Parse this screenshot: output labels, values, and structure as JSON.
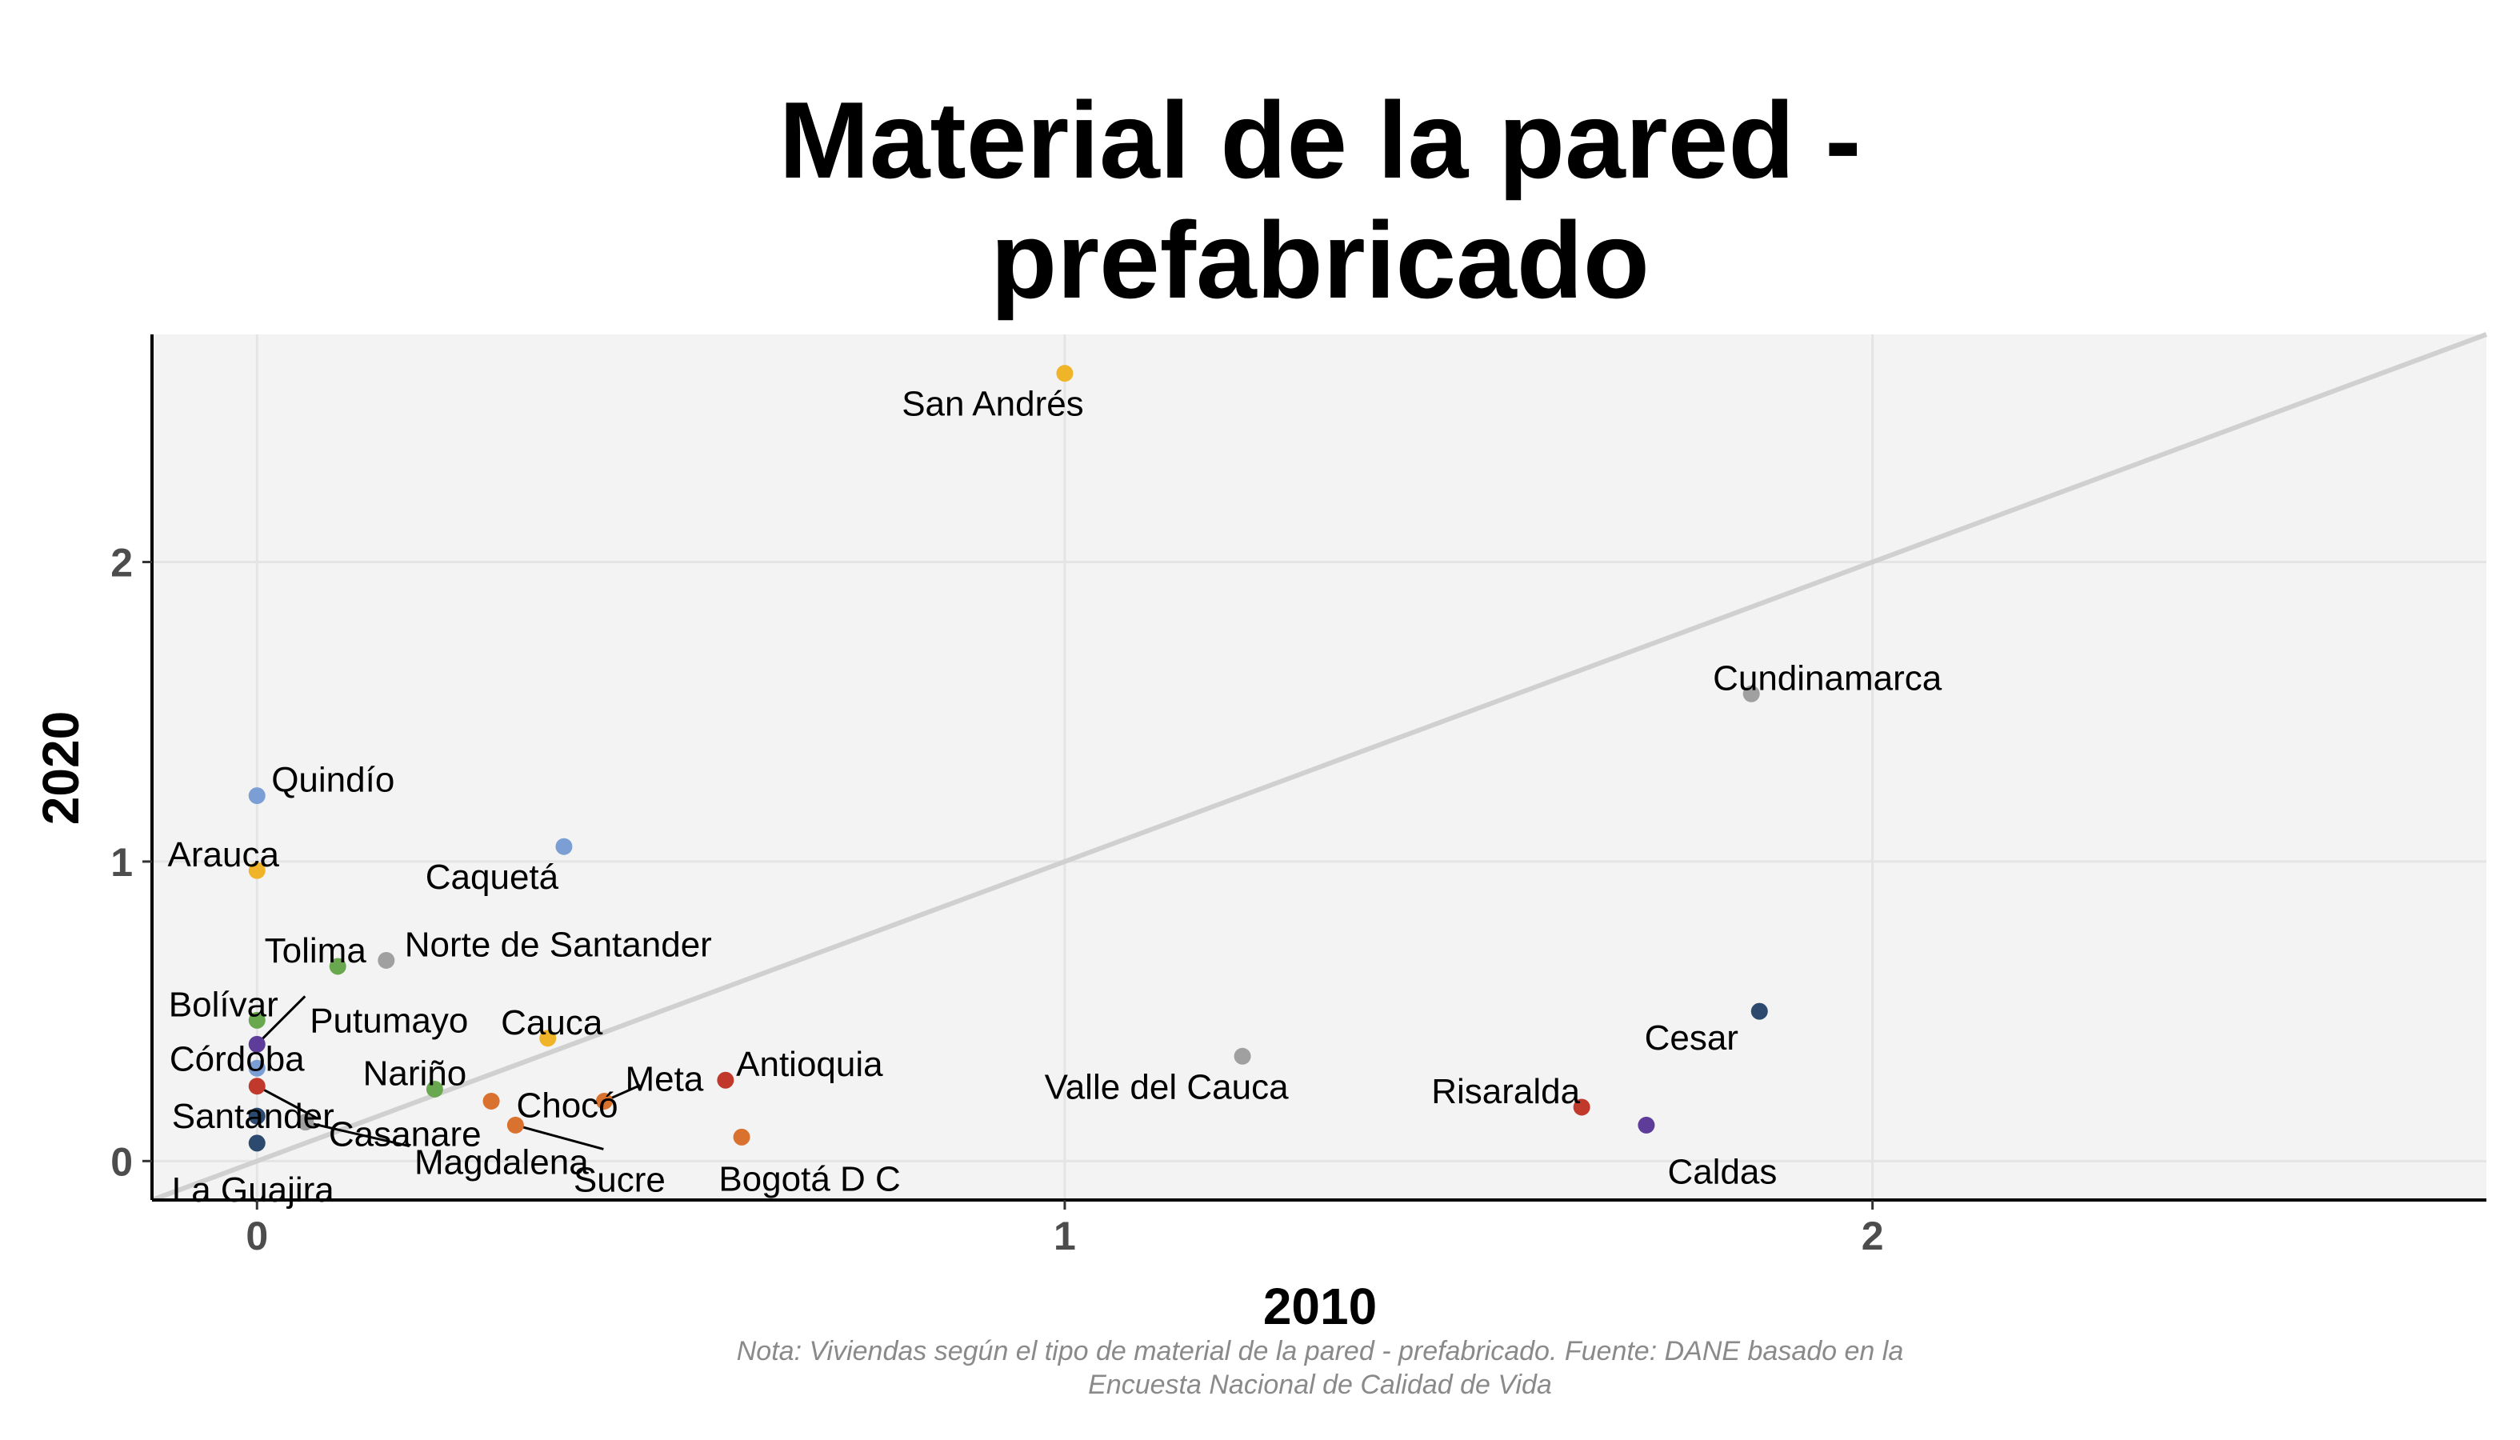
{
  "chart_data": {
    "type": "scatter",
    "title": [
      "Material de la pared -",
      "prefabricado"
    ],
    "xlabel": "2010",
    "ylabel": "2020",
    "caption": [
      "Nota: Viviendas según el tipo de material de la pared - prefabricado. Fuente: DANE basado en la",
      "Encuesta Nacional de Calidad de Vida"
    ],
    "xlim": [
      -0.13,
      2.76
    ],
    "ylim": [
      -0.13,
      2.76
    ],
    "x_ticks": [
      0,
      1,
      2
    ],
    "y_ticks": [
      0,
      1,
      2
    ],
    "grid": true,
    "reference_line": "y = x",
    "colors": {
      "panel": "#f3f3f3",
      "grid": "#e4e4e4",
      "reference_line": "#d0d0d0",
      "yellow": "#f0b429",
      "blue": "#7b9fd4",
      "green": "#6aa84f",
      "gray": "#a0a0a0",
      "orange": "#d9722e",
      "red": "#c0392b",
      "purple": "#5e3c99",
      "navy": "#2c4a6e"
    },
    "points": [
      {
        "name": "San Andrés",
        "x": 1.0,
        "y": 2.63,
        "color": "yellow"
      },
      {
        "name": "Cundinamarca",
        "x": 1.85,
        "y": 1.56,
        "color": "gray"
      },
      {
        "name": "Quindío",
        "x": 0.0,
        "y": 1.22,
        "color": "blue"
      },
      {
        "name": "Caquetá",
        "x": 0.38,
        "y": 1.05,
        "color": "blue"
      },
      {
        "name": "Arauca",
        "x": 0.0,
        "y": 0.97,
        "color": "yellow"
      },
      {
        "name": "Norte de Santander",
        "x": 0.16,
        "y": 0.67,
        "color": "gray"
      },
      {
        "name": "Tolima",
        "x": 0.1,
        "y": 0.65,
        "color": "green"
      },
      {
        "name": "Cesar",
        "x": 1.86,
        "y": 0.5,
        "color": "navy"
      },
      {
        "name": "Bolívar",
        "x": 0.0,
        "y": 0.47,
        "color": "green"
      },
      {
        "name": "Cauca",
        "x": 0.36,
        "y": 0.41,
        "color": "yellow"
      },
      {
        "name": "Putumayo",
        "x": 0.0,
        "y": 0.39,
        "color": "purple"
      },
      {
        "name": "Valle del Cauca",
        "x": 1.22,
        "y": 0.35,
        "color": "gray"
      },
      {
        "name": "Córdoba",
        "x": 0.0,
        "y": 0.31,
        "color": "blue"
      },
      {
        "name": "Antioquia",
        "x": 0.58,
        "y": 0.27,
        "color": "red"
      },
      {
        "name": "Risaralda",
        "x": 1.64,
        "y": 0.18,
        "color": "red"
      },
      {
        "name": "Nariño",
        "x": 0.22,
        "y": 0.24,
        "color": "green"
      },
      {
        "name": "Casanare",
        "x": 0.0,
        "y": 0.25,
        "color": "red"
      },
      {
        "name": "Meta",
        "x": 0.43,
        "y": 0.2,
        "color": "orange"
      },
      {
        "name": "Chocó",
        "x": 0.29,
        "y": 0.2,
        "color": "orange"
      },
      {
        "name": "Santander",
        "x": 0.0,
        "y": 0.15,
        "color": "navy"
      },
      {
        "name": "Sucre",
        "x": 0.32,
        "y": 0.12,
        "color": "orange"
      },
      {
        "name": "Magdalena",
        "x": 0.06,
        "y": 0.13,
        "color": "gray"
      },
      {
        "name": "Caldas",
        "x": 1.72,
        "y": 0.12,
        "color": "purple"
      },
      {
        "name": "Bogotá D C",
        "x": 0.6,
        "y": 0.08,
        "color": "orange"
      },
      {
        "name": "La Guajira",
        "x": 0.0,
        "y": 0.06,
        "color": "navy"
      }
    ]
  }
}
